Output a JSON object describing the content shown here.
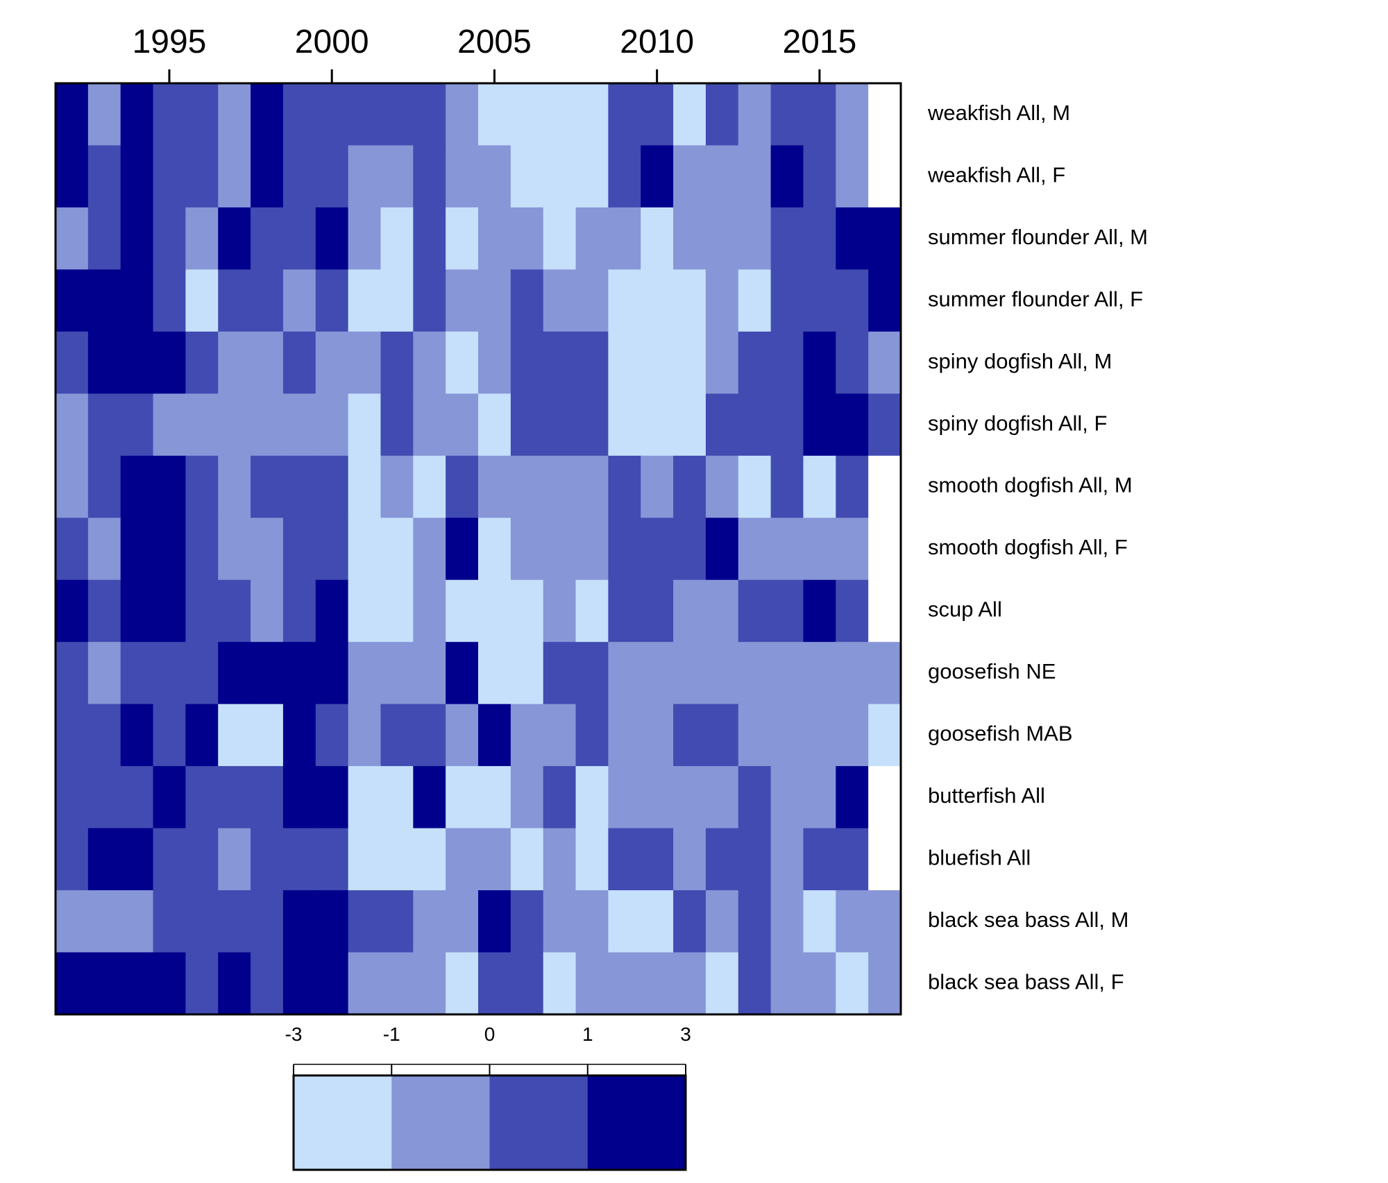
{
  "chart_data": {
    "type": "heatmap",
    "title": "",
    "xlabel": "",
    "ylabel": "",
    "x_start_year": 1992,
    "x_end_year": 2017,
    "x_ticks": [
      1995,
      2000,
      2005,
      2010,
      2015
    ],
    "x_tick_labels": [
      "1995",
      "2000",
      "2005",
      "2010",
      "2015"
    ],
    "rows": [
      "weakfish All, M",
      "weakfish All, F",
      "summer flounder All, M",
      "summer flounder All, F",
      "spiny dogfish All, M",
      "spiny dogfish All, F",
      "smooth dogfish All, M",
      "smooth dogfish All, F",
      "scup All",
      "goosefish NE",
      "goosefish MAB",
      "butterfish All",
      "bluefish All",
      "black sea bass All, M",
      "black sea bass All, F"
    ],
    "value_categories": [
      1,
      2,
      3,
      4
    ],
    "missing_category": 0,
    "cells": [
      [
        4,
        2,
        4,
        3,
        3,
        2,
        4,
        3,
        3,
        3,
        3,
        3,
        2,
        1,
        1,
        1,
        1,
        3,
        3,
        1,
        3,
        2,
        3,
        3,
        2,
        0
      ],
      [
        4,
        3,
        4,
        3,
        3,
        2,
        4,
        3,
        3,
        2,
        2,
        3,
        2,
        2,
        1,
        1,
        1,
        3,
        4,
        2,
        2,
        2,
        4,
        3,
        2,
        0
      ],
      [
        2,
        3,
        4,
        3,
        2,
        4,
        3,
        3,
        4,
        2,
        1,
        3,
        1,
        2,
        2,
        1,
        2,
        2,
        1,
        2,
        2,
        2,
        3,
        3,
        4,
        4
      ],
      [
        4,
        4,
        4,
        3,
        1,
        3,
        3,
        2,
        3,
        1,
        1,
        3,
        2,
        2,
        3,
        2,
        2,
        1,
        1,
        1,
        2,
        1,
        3,
        3,
        3,
        4
      ],
      [
        3,
        4,
        4,
        4,
        3,
        2,
        2,
        3,
        2,
        2,
        3,
        2,
        1,
        2,
        3,
        3,
        3,
        1,
        1,
        1,
        2,
        3,
        3,
        4,
        3,
        2
      ],
      [
        2,
        3,
        3,
        2,
        2,
        2,
        2,
        2,
        2,
        1,
        3,
        2,
        2,
        1,
        3,
        3,
        3,
        1,
        1,
        1,
        3,
        3,
        3,
        4,
        4,
        3
      ],
      [
        2,
        3,
        4,
        4,
        3,
        2,
        3,
        3,
        3,
        1,
        2,
        1,
        3,
        2,
        2,
        2,
        2,
        3,
        2,
        3,
        2,
        1,
        3,
        1,
        3,
        0
      ],
      [
        3,
        2,
        4,
        4,
        3,
        2,
        2,
        3,
        3,
        1,
        1,
        2,
        4,
        1,
        2,
        2,
        2,
        3,
        3,
        3,
        4,
        2,
        2,
        2,
        2,
        0
      ],
      [
        4,
        3,
        4,
        4,
        3,
        3,
        2,
        3,
        4,
        1,
        1,
        2,
        1,
        1,
        1,
        2,
        1,
        3,
        3,
        2,
        2,
        3,
        3,
        4,
        3,
        0
      ],
      [
        3,
        2,
        3,
        3,
        3,
        4,
        4,
        4,
        4,
        2,
        2,
        2,
        4,
        1,
        1,
        3,
        3,
        2,
        2,
        2,
        2,
        2,
        2,
        2,
        2,
        2
      ],
      [
        3,
        3,
        4,
        3,
        4,
        1,
        1,
        4,
        3,
        2,
        3,
        3,
        2,
        4,
        2,
        2,
        3,
        2,
        2,
        3,
        3,
        2,
        2,
        2,
        2,
        1
      ],
      [
        3,
        3,
        3,
        4,
        3,
        3,
        3,
        4,
        4,
        1,
        1,
        4,
        1,
        1,
        2,
        3,
        1,
        2,
        2,
        2,
        2,
        3,
        2,
        2,
        4,
        0
      ],
      [
        3,
        4,
        4,
        3,
        3,
        2,
        3,
        3,
        3,
        1,
        1,
        1,
        2,
        2,
        1,
        2,
        1,
        3,
        3,
        2,
        3,
        3,
        2,
        3,
        3,
        0
      ],
      [
        2,
        2,
        2,
        3,
        3,
        3,
        3,
        4,
        4,
        3,
        3,
        2,
        2,
        4,
        3,
        2,
        2,
        1,
        1,
        3,
        2,
        3,
        2,
        1,
        2,
        2
      ],
      [
        4,
        4,
        4,
        4,
        3,
        4,
        3,
        4,
        4,
        2,
        2,
        2,
        1,
        3,
        3,
        1,
        2,
        2,
        2,
        2,
        1,
        3,
        2,
        2,
        1,
        2
      ]
    ],
    "colors": {
      "1": "#c6e0fb",
      "2": "#8796d7",
      "3": "#414bb1",
      "4": "#00008c",
      "0": "#ffffff"
    },
    "legend": {
      "tick_labels": [
        "-3",
        "-1",
        "0",
        "1",
        "3"
      ],
      "placement": "bottom",
      "colors": [
        "#c6e0fb",
        "#8796d7",
        "#414bb1",
        "#00008c"
      ]
    }
  }
}
